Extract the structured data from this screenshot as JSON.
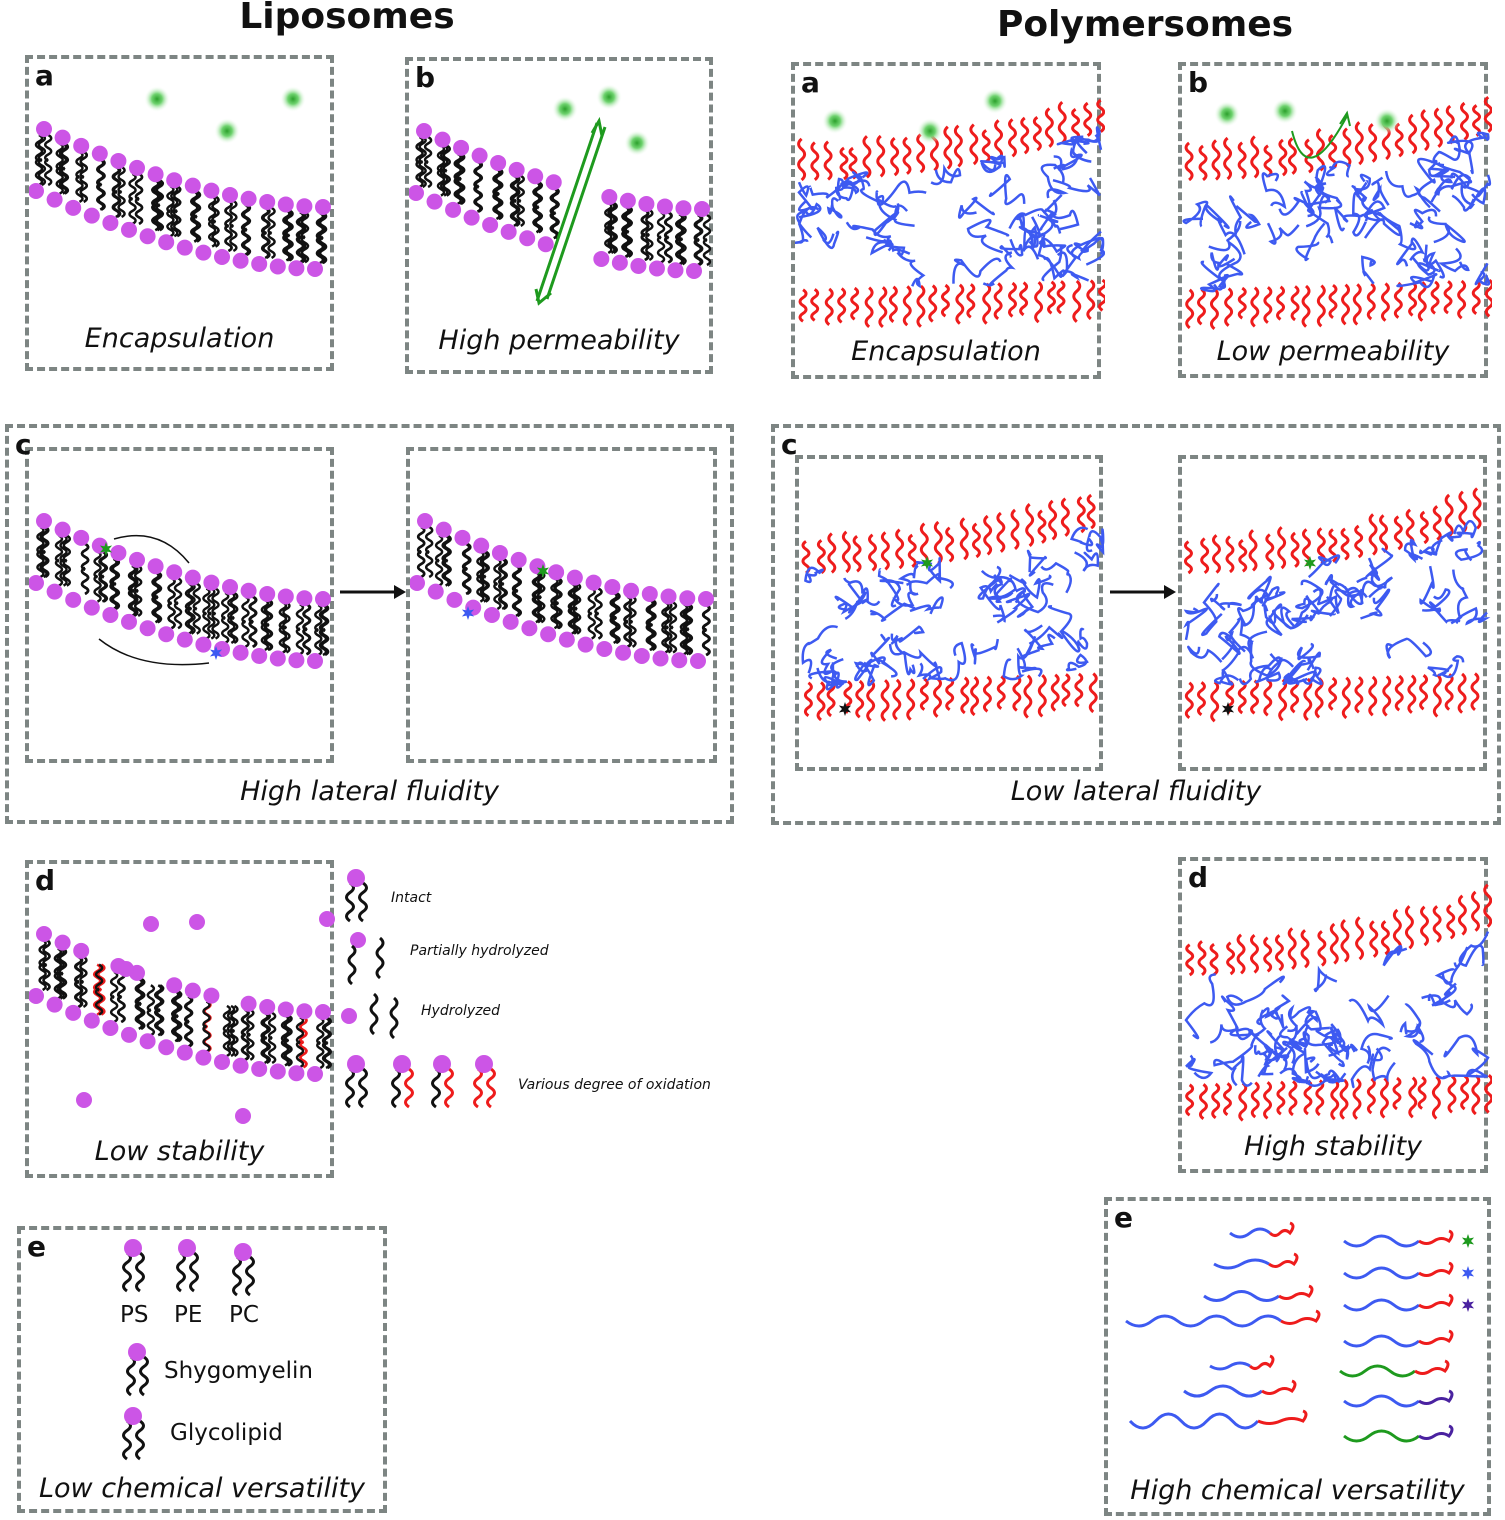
{
  "titles": {
    "left": "Liposomes",
    "right": "Polymersomes"
  },
  "liposomes": {
    "a": {
      "letter": "a",
      "caption": "Encapsulation"
    },
    "b": {
      "letter": "b",
      "caption": "High permeability"
    },
    "c": {
      "letter": "c",
      "caption": "High lateral fluidity"
    },
    "d": {
      "letter": "d",
      "caption": "Low stability",
      "legend": [
        "Intact",
        "Partially hydrolyzed",
        "Hydrolyzed",
        "Various degree of oxidation"
      ]
    },
    "e": {
      "letter": "e",
      "caption": "Low chemical versatility",
      "lipids": [
        "PS",
        "PE",
        "PC",
        "Shygomyelin",
        "Glycolipid"
      ]
    }
  },
  "polymersomes": {
    "a": {
      "letter": "a",
      "caption": "Encapsulation"
    },
    "b": {
      "letter": "b",
      "caption": "Low permeability"
    },
    "c": {
      "letter": "c",
      "caption": "Low lateral fluidity"
    },
    "d": {
      "letter": "d",
      "caption": "High stability"
    },
    "e": {
      "letter": "e",
      "caption": "High chemical versatility"
    }
  },
  "colors": {
    "head": "#cc55e6",
    "tail": "#111111",
    "oxidized": "#ee1c1c",
    "hydrophilic": "#ee1c1c",
    "hydrophobic": "#3d5af1",
    "green": "#1e9a1e",
    "border": "#7d8583",
    "purple_block": "#4a22a0",
    "green_block": "#1e9a1e"
  }
}
